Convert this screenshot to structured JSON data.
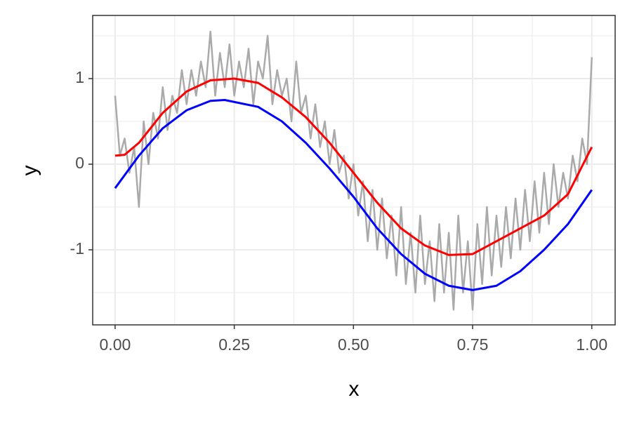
{
  "chart_data": {
    "type": "line",
    "x_label": "x",
    "y_label": "y",
    "xlim": [
      -0.047,
      1.049
    ],
    "ylim": [
      -1.877,
      1.738
    ],
    "xticks": [
      {
        "value": 0,
        "label": "0.00"
      },
      {
        "value": 0.25,
        "label": "0.25"
      },
      {
        "value": 0.5,
        "label": "0.50"
      },
      {
        "value": 0.75,
        "label": "0.75"
      },
      {
        "value": 1,
        "label": "1.00"
      }
    ],
    "yticks": [
      -1,
      0,
      1
    ],
    "x_minor_ticks": [
      0.125,
      0.375,
      0.625,
      0.875
    ],
    "y_minor_ticks": [
      -1.5,
      -0.5,
      0.5,
      1.5
    ],
    "grid": true,
    "series": [
      {
        "color": "#aaaaaa",
        "x": [
          0,
          0.01,
          0.02,
          0.03,
          0.04,
          0.05,
          0.06,
          0.07,
          0.08,
          0.09,
          0.1,
          0.11,
          0.12,
          0.13,
          0.14,
          0.15,
          0.16,
          0.17,
          0.18,
          0.19,
          0.2,
          0.21,
          0.22,
          0.23,
          0.24,
          0.25,
          0.26,
          0.27,
          0.28,
          0.29,
          0.3,
          0.31,
          0.32,
          0.33,
          0.34,
          0.35,
          0.36,
          0.37,
          0.38,
          0.39,
          0.4,
          0.41,
          0.42,
          0.43,
          0.44,
          0.45,
          0.46,
          0.47,
          0.48,
          0.49,
          0.5,
          0.51,
          0.52,
          0.53,
          0.54,
          0.55,
          0.56,
          0.57,
          0.58,
          0.59,
          0.6,
          0.61,
          0.62,
          0.63,
          0.64,
          0.65,
          0.66,
          0.67,
          0.68,
          0.69,
          0.7,
          0.71,
          0.72,
          0.73,
          0.74,
          0.75,
          0.76,
          0.77,
          0.78,
          0.79,
          0.8,
          0.81,
          0.82,
          0.83,
          0.84,
          0.85,
          0.86,
          0.87,
          0.88,
          0.89,
          0.9,
          0.91,
          0.92,
          0.93,
          0.94,
          0.95,
          0.96,
          0.97,
          0.98,
          0.99,
          1
        ],
        "values": [
          0.8,
          0.1,
          0.3,
          -0.1,
          0.2,
          -0.5,
          0.5,
          0.0,
          0.6,
          0.3,
          0.9,
          0.4,
          0.8,
          0.6,
          1.1,
          0.7,
          1.1,
          0.8,
          1.2,
          0.9,
          1.55,
          0.8,
          1.3,
          0.9,
          1.4,
          0.8,
          1.2,
          0.9,
          1.35,
          0.7,
          1.2,
          1.0,
          1.5,
          0.7,
          1.1,
          0.8,
          1.0,
          0.5,
          1.2,
          0.6,
          0.8,
          0.3,
          0.7,
          0.2,
          0.5,
          0.0,
          0.4,
          -0.1,
          0.1,
          -0.4,
          0.0,
          -0.6,
          -0.2,
          -0.9,
          -0.3,
          -1.0,
          -0.4,
          -1.1,
          -0.6,
          -1.3,
          -0.5,
          -1.4,
          -0.8,
          -1.5,
          -0.6,
          -1.4,
          -0.9,
          -1.6,
          -0.7,
          -1.5,
          -0.8,
          -1.7,
          -0.6,
          -1.5,
          -0.9,
          -1.7,
          -0.7,
          -1.4,
          -0.5,
          -1.3,
          -0.6,
          -1.2,
          -0.5,
          -1.1,
          -0.4,
          -1.0,
          -0.3,
          -0.9,
          -0.2,
          -0.8,
          -0.1,
          -0.7,
          0.0,
          -0.5,
          -0.1,
          -0.4,
          0.1,
          -0.2,
          0.3,
          0.0,
          1.25
        ]
      },
      {
        "color": "#ff0000",
        "x": [
          0,
          0.02,
          0.05,
          0.1,
          0.15,
          0.2,
          0.25,
          0.3,
          0.35,
          0.4,
          0.45,
          0.5,
          0.55,
          0.6,
          0.65,
          0.7,
          0.75,
          0.8,
          0.85,
          0.9,
          0.95,
          1
        ],
        "values": [
          0.1,
          0.11,
          0.25,
          0.6,
          0.85,
          0.98,
          1.0,
          0.95,
          0.78,
          0.55,
          0.25,
          -0.1,
          -0.45,
          -0.75,
          -0.95,
          -1.06,
          -1.05,
          -0.9,
          -0.75,
          -0.6,
          -0.35,
          0.2
        ]
      },
      {
        "color": "#0000ff",
        "x": [
          0,
          0.05,
          0.1,
          0.15,
          0.2,
          0.23,
          0.3,
          0.35,
          0.4,
          0.45,
          0.5,
          0.55,
          0.6,
          0.65,
          0.7,
          0.75,
          0.8,
          0.85,
          0.9,
          0.95,
          1
        ],
        "values": [
          -0.28,
          0.1,
          0.42,
          0.63,
          0.74,
          0.75,
          0.67,
          0.5,
          0.25,
          -0.05,
          -0.38,
          -0.75,
          -1.05,
          -1.28,
          -1.42,
          -1.47,
          -1.42,
          -1.25,
          -1.0,
          -0.7,
          -0.3
        ]
      }
    ]
  }
}
